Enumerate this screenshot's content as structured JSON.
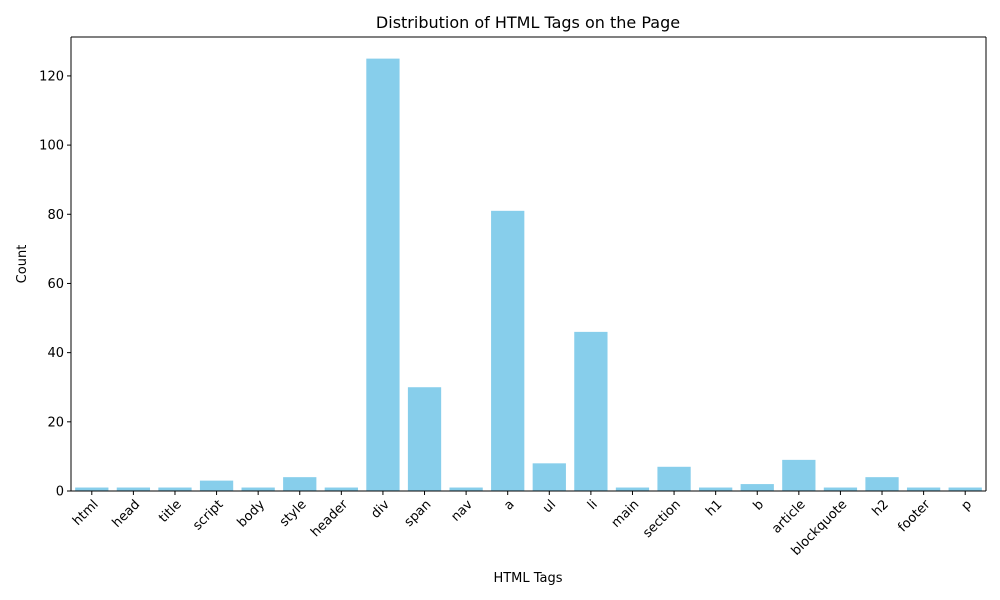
{
  "chart_data": {
    "type": "bar",
    "title": "Distribution of HTML Tags on the Page",
    "xlabel": "HTML Tags",
    "ylabel": "Count",
    "categories": [
      "html",
      "head",
      "title",
      "script",
      "body",
      "style",
      "header",
      "div",
      "span",
      "nav",
      "a",
      "ul",
      "li",
      "main",
      "section",
      "h1",
      "b",
      "article",
      "blockquote",
      "h2",
      "footer",
      "p"
    ],
    "values": [
      1,
      1,
      1,
      3,
      1,
      4,
      1,
      125,
      30,
      1,
      81,
      8,
      46,
      1,
      7,
      1,
      2,
      9,
      1,
      4,
      1,
      1
    ],
    "ylim": [
      0,
      131.25
    ],
    "yticks": [
      0,
      20,
      40,
      60,
      80,
      100,
      120
    ],
    "bar_color": "#87ceeb",
    "grid": false,
    "legend": "none",
    "xtick_rotation_deg": 45
  }
}
